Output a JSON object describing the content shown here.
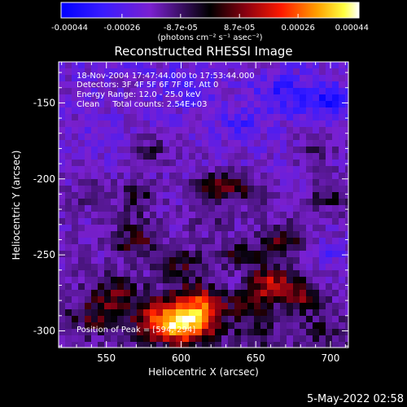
{
  "chart_data": {
    "type": "heatmap",
    "title": "Reconstructed RHESSI Image",
    "xlabel": "Heliocentric X (arcsec)",
    "ylabel": "Heliocentric Y (arcsec)",
    "xlim": [
      518,
      712
    ],
    "ylim": [
      -311,
      -123
    ],
    "xticks": [
      550,
      600,
      650,
      700
    ],
    "yticks": [
      -150,
      -200,
      -250,
      -300
    ],
    "colorbar": {
      "ticks": [
        -0.00044,
        -0.00026,
        -8.7e-05,
        8.7e-05,
        0.00026,
        0.00044
      ],
      "tick_labels": [
        "-0.00044",
        "-0.00026",
        "-8.7e-05",
        "8.7e-05",
        "0.00026",
        "0.00044"
      ],
      "unit_label": "(photons cm⁻² s⁻¹ asec⁻²)",
      "range": [
        -0.00044,
        0.00044
      ]
    },
    "annotations": [
      "18-Nov-2004 17:47:44.000 to 17:53:44.000",
      "Detectors: 3F 4F 5F 6F 7F 8F, Att 0",
      "Energy Range: 12.0 - 25.0 keV",
      "Clean     Total counts: 2.54E+03",
      "Position of Peak = [594,-294]"
    ],
    "peak": {
      "x": 594,
      "y": -294,
      "value": 0.00044
    },
    "blobs": [
      {
        "x": 600,
        "y": -296,
        "v": 0.00044,
        "sx": 14,
        "sy": 9
      },
      {
        "x": 612,
        "y": -283,
        "v": 0.0003,
        "sx": 12,
        "sy": 10
      },
      {
        "x": 580,
        "y": -290,
        "v": 0.00018,
        "sx": 12,
        "sy": 10
      },
      {
        "x": 555,
        "y": -275,
        "v": 0.00018,
        "sx": 10,
        "sy": 8
      },
      {
        "x": 540,
        "y": -290,
        "v": 0.00015,
        "sx": 10,
        "sy": 8
      },
      {
        "x": 660,
        "y": -268,
        "v": 0.00026,
        "sx": 10,
        "sy": 8
      },
      {
        "x": 680,
        "y": -278,
        "v": 0.00018,
        "sx": 9,
        "sy": 8
      },
      {
        "x": 645,
        "y": -280,
        "v": 0.00016,
        "sx": 9,
        "sy": 7
      },
      {
        "x": 668,
        "y": -240,
        "v": 0.0002,
        "sx": 10,
        "sy": 7
      },
      {
        "x": 640,
        "y": -250,
        "v": 0.00014,
        "sx": 12,
        "sy": 6
      },
      {
        "x": 600,
        "y": -255,
        "v": 0.00014,
        "sx": 10,
        "sy": 7
      },
      {
        "x": 570,
        "y": -240,
        "v": 0.00018,
        "sx": 10,
        "sy": 8
      },
      {
        "x": 625,
        "y": -205,
        "v": 0.00022,
        "sx": 11,
        "sy": 7
      },
      {
        "x": 650,
        "y": -210,
        "v": 0.00012,
        "sx": 9,
        "sy": 7
      },
      {
        "x": 700,
        "y": -210,
        "v": 0.00014,
        "sx": 9,
        "sy": 8
      },
      {
        "x": 570,
        "y": -212,
        "v": 0.00012,
        "sx": 10,
        "sy": 8
      },
      {
        "x": 580,
        "y": -180,
        "v": 0.0001,
        "sx": 9,
        "sy": 7
      },
      {
        "x": 690,
        "y": -180,
        "v": 0.0001,
        "sx": 9,
        "sy": 7
      },
      {
        "x": 540,
        "y": -210,
        "v": 8e-05,
        "sx": 9,
        "sy": 7
      },
      {
        "x": 650,
        "y": -300,
        "v": 0.00012,
        "sx": 10,
        "sy": 7
      },
      {
        "x": 695,
        "y": -300,
        "v": 0.0001,
        "sx": 8,
        "sy": 7
      },
      {
        "x": 620,
        "y": -225,
        "v": 8e-05,
        "sx": 10,
        "sy": 7
      },
      {
        "x": 605,
        "y": -140,
        "v": -0.0001,
        "sx": 12,
        "sy": 8
      },
      {
        "x": 670,
        "y": -145,
        "v": -0.00014,
        "sx": 14,
        "sy": 9
      },
      {
        "x": 700,
        "y": -150,
        "v": -0.00016,
        "sx": 10,
        "sy": 8
      },
      {
        "x": 640,
        "y": -165,
        "v": -0.0001,
        "sx": 12,
        "sy": 8
      },
      {
        "x": 550,
        "y": -170,
        "v": -6e-05,
        "sx": 10,
        "sy": 8
      },
      {
        "x": 700,
        "y": -250,
        "v": -0.0001,
        "sx": 9,
        "sy": 8
      },
      {
        "x": 630,
        "y": -270,
        "v": -6e-05,
        "sx": 8,
        "sy": 6
      }
    ]
  },
  "footer": {
    "date": "5-May-2022 02:58"
  }
}
